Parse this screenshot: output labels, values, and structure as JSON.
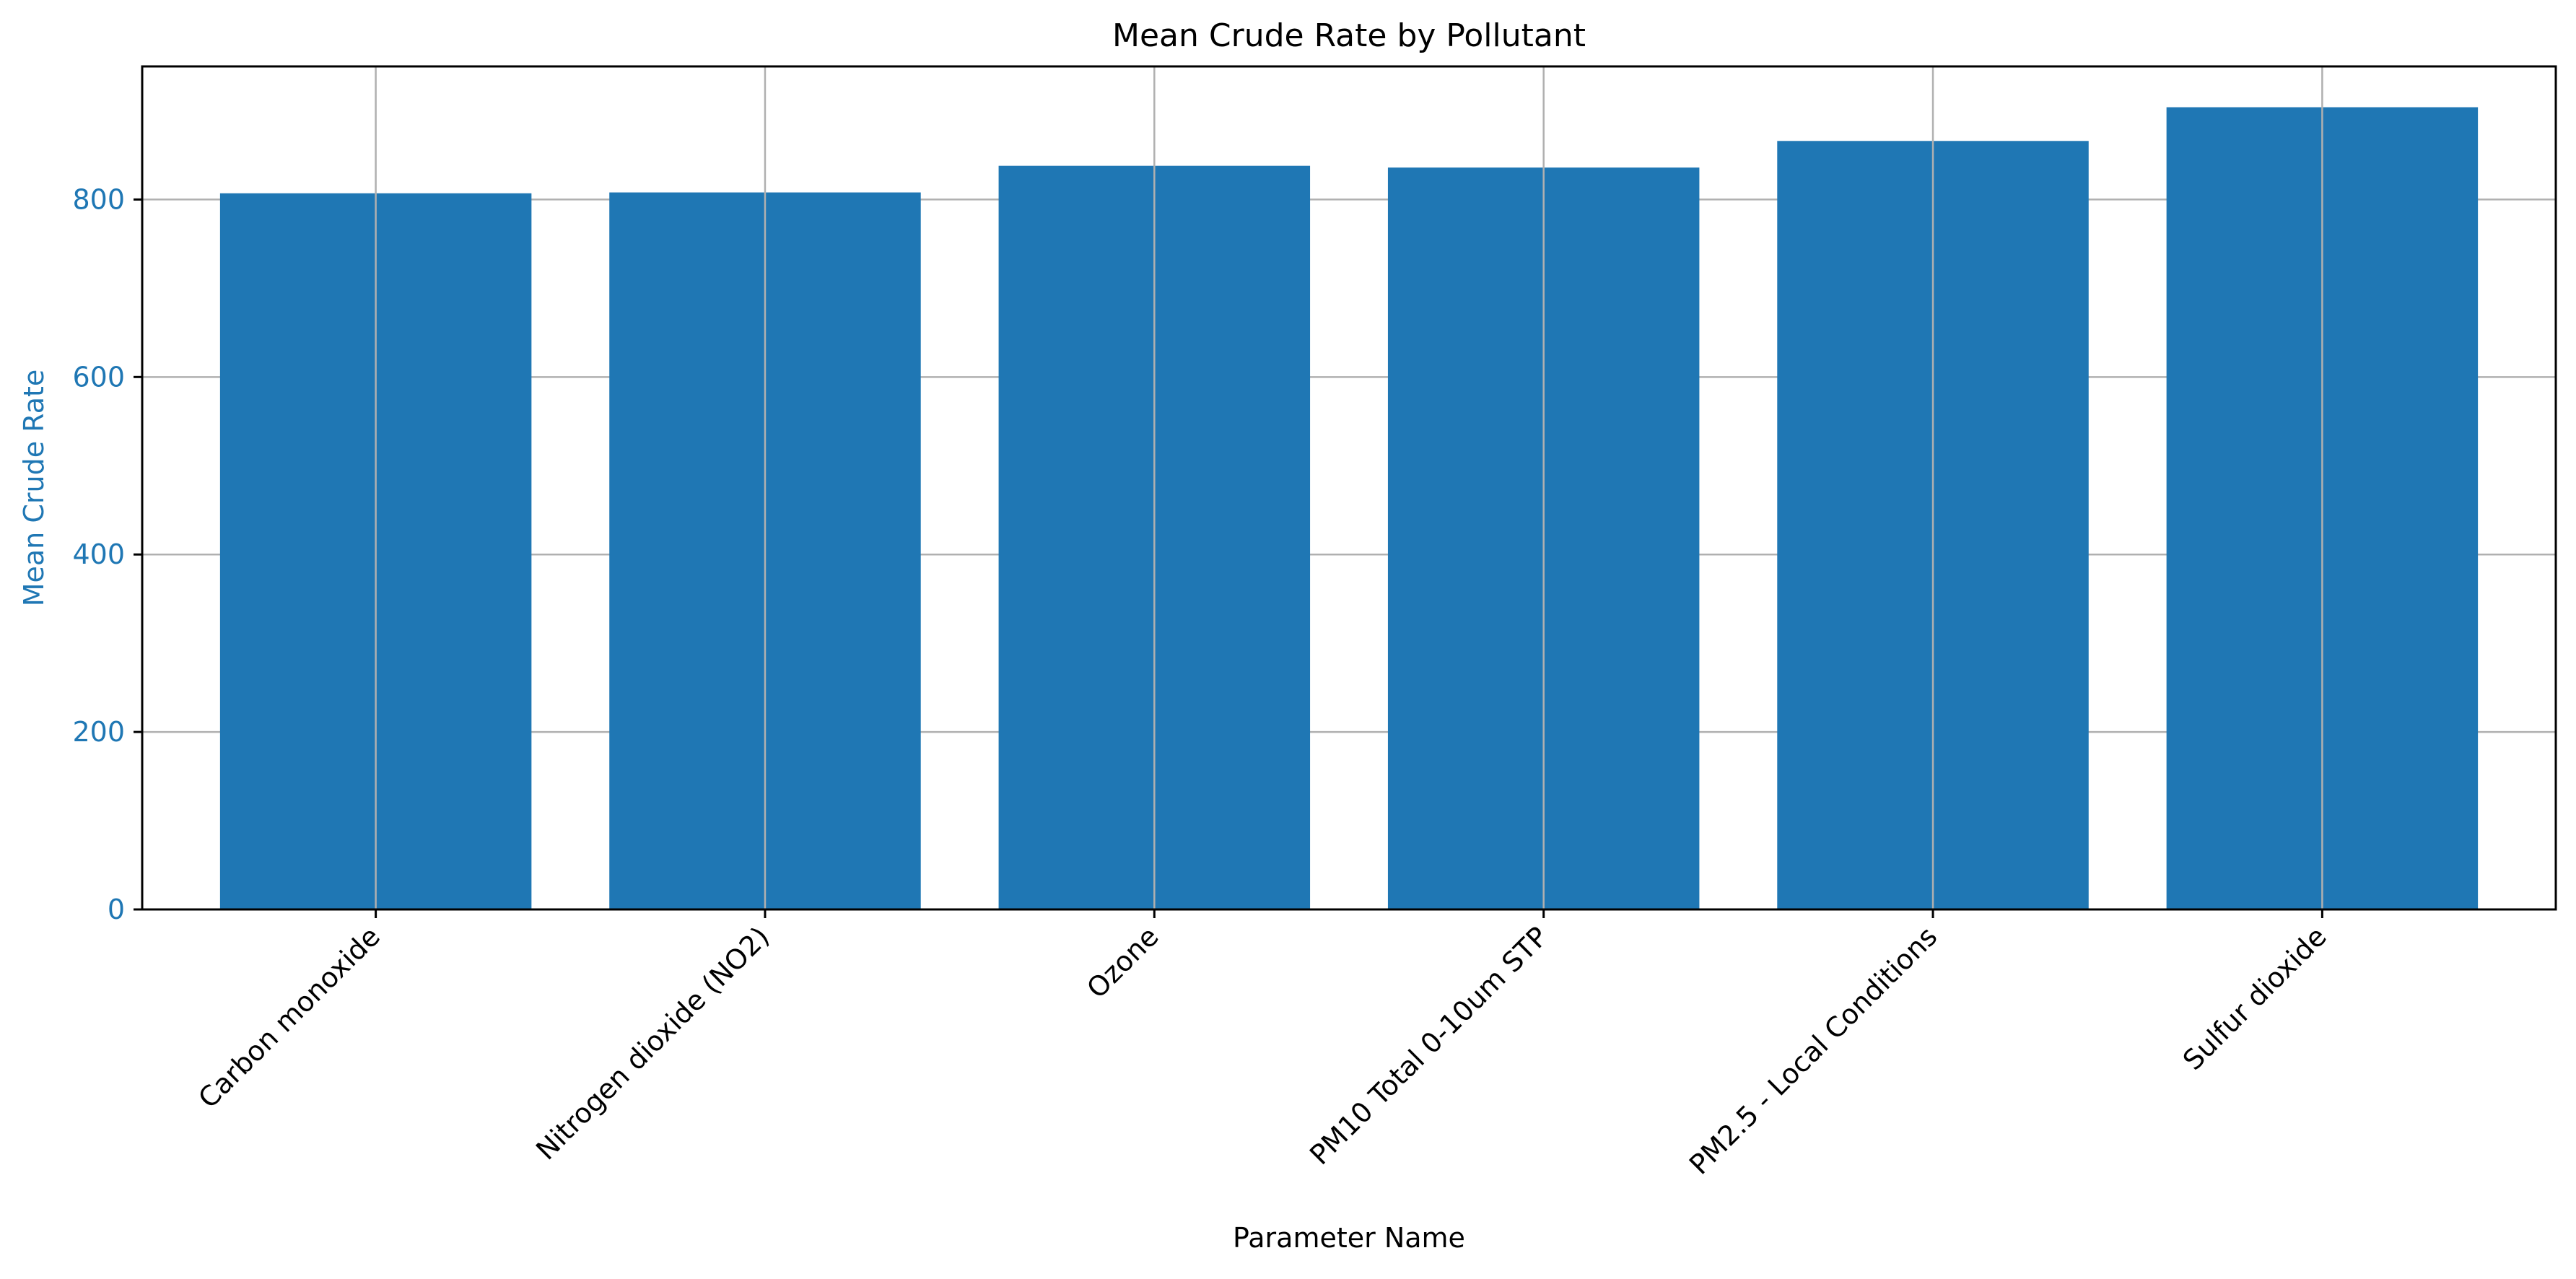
{
  "chart_data": {
    "type": "bar",
    "title": "Mean Crude Rate by Pollutant",
    "xlabel": "Parameter Name",
    "ylabel": "Mean Crude Rate",
    "categories": [
      "Carbon monoxide",
      "Nitrogen dioxide (NO2)",
      "Ozone",
      "PM10 Total 0-10um STP",
      "PM2.5 - Local Conditions",
      "Sulfur dioxide"
    ],
    "values": [
      807,
      808,
      838,
      836,
      866,
      904
    ],
    "ylim": [
      0,
      950
    ],
    "yticks": [
      0,
      200,
      400,
      600,
      800
    ],
    "grid": true,
    "legend": "none",
    "colors": {
      "bar": "#1f77b4",
      "ylabel": "#1f77b4",
      "ytick_label": "#1f77b4",
      "grid": "#b0b0b0",
      "axis": "#000000",
      "text": "#000000"
    }
  }
}
